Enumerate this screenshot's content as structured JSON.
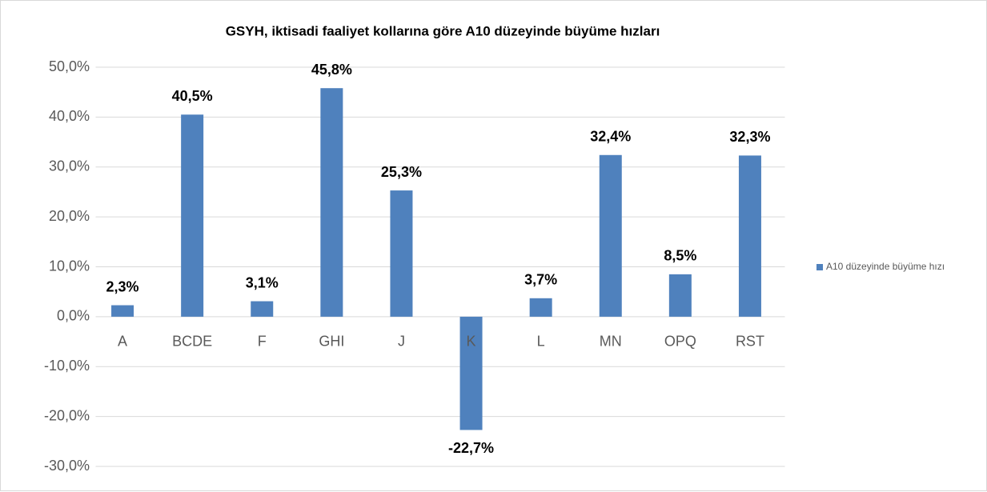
{
  "chart_data": {
    "type": "bar",
    "title": "GSYH, iktisadi faaliyet kollarına göre A10 düzeyinde büyüme hızları",
    "categories": [
      "A",
      "BCDE",
      "F",
      "GHI",
      "J",
      "K",
      "L",
      "MN",
      "OPQ",
      "RST"
    ],
    "series": [
      {
        "name": "A10 düzeyinde büyüme hızı",
        "color": "#4f81bd",
        "values": [
          2.3,
          40.5,
          3.1,
          45.8,
          25.3,
          -22.7,
          3.7,
          32.4,
          8.5,
          32.3
        ],
        "value_labels": [
          "2,3%",
          "40,5%",
          "3,1%",
          "45,8%",
          "25,3%",
          "-22,7%",
          "3,7%",
          "32,4%",
          "8,5%",
          "32,3%"
        ]
      }
    ],
    "ylim": [
      -30,
      50
    ],
    "yticks": [
      {
        "value": -30,
        "label": "-30,0%"
      },
      {
        "value": -20,
        "label": "-20,0%"
      },
      {
        "value": -10,
        "label": "-10,0%"
      },
      {
        "value": 0,
        "label": "0,0%"
      },
      {
        "value": 10,
        "label": "10,0%"
      },
      {
        "value": 20,
        "label": "20,0%"
      },
      {
        "value": 30,
        "label": "30,0%"
      },
      {
        "value": 40,
        "label": "40,0%"
      },
      {
        "value": 50,
        "label": "50,0%"
      }
    ],
    "grid": true,
    "legend": "right"
  }
}
